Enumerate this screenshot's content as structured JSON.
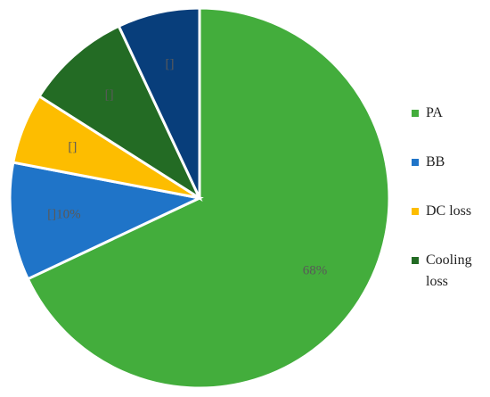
{
  "chart_data": {
    "type": "pie",
    "categories": [
      "PA",
      "BB",
      "DC loss",
      "Cooling loss",
      null
    ],
    "values": [
      68,
      10,
      6,
      9,
      7
    ],
    "value_labels": [
      "68%",
      "[]10%",
      "[]",
      "[]",
      "[]"
    ],
    "colors": [
      "#43ad3c",
      "#1f74c8",
      "#fdbd00",
      "#236b24",
      "#083e7b"
    ],
    "legend": "right"
  }
}
